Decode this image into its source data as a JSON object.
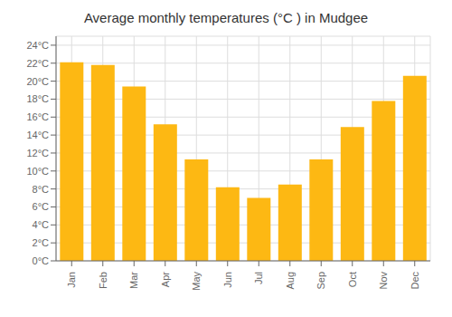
{
  "chart_data": {
    "type": "bar",
    "title": "Average monthly temperatures (°C ) in Mudgee",
    "categories": [
      "Jan",
      "Feb",
      "Mar",
      "Apr",
      "May",
      "Jun",
      "Jul",
      "Aug",
      "Sep",
      "Oct",
      "Nov",
      "Dec"
    ],
    "values": [
      22.1,
      21.8,
      19.4,
      15.2,
      11.3,
      8.2,
      7.0,
      8.5,
      11.3,
      14.9,
      17.8,
      20.6
    ],
    "color": "#FDB813",
    "ylim": [
      0,
      25
    ],
    "yticks": [
      {
        "value": 0,
        "label": "0°C"
      },
      {
        "value": 2,
        "label": "2°C"
      },
      {
        "value": 4,
        "label": "4°C"
      },
      {
        "value": 6,
        "label": "6°C"
      },
      {
        "value": 8,
        "label": "8°C"
      },
      {
        "value": 10,
        "label": "10°C"
      },
      {
        "value": 12,
        "label": "12°C"
      },
      {
        "value": 14,
        "label": "14°C"
      },
      {
        "value": 16,
        "label": "16°C"
      },
      {
        "value": 18,
        "label": "18°C"
      },
      {
        "value": 20,
        "label": "20°C"
      },
      {
        "value": 22,
        "label": "22°C"
      },
      {
        "value": 24,
        "label": "24°C"
      }
    ],
    "grid": true
  }
}
